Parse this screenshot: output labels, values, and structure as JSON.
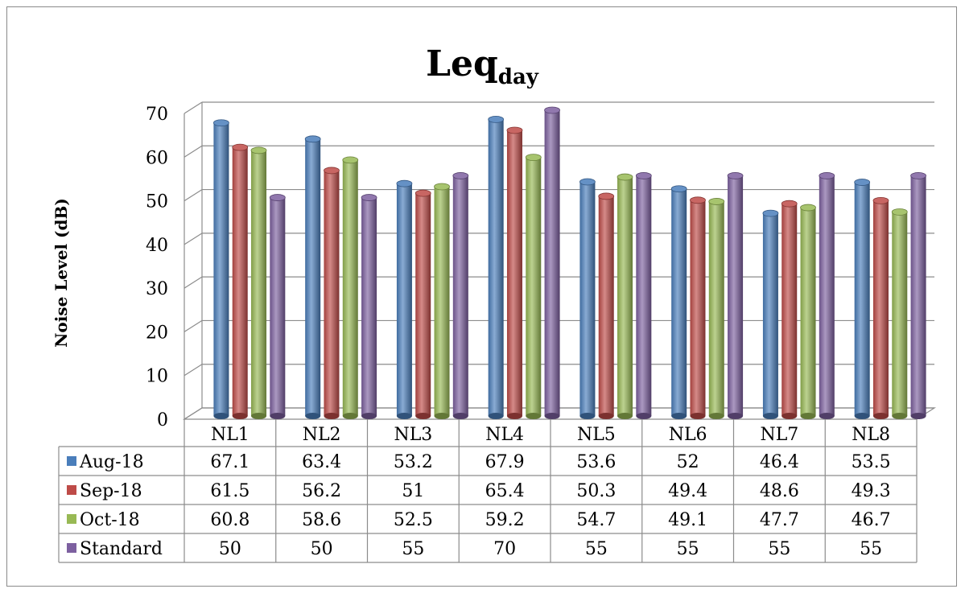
{
  "chart_data": {
    "type": "bar",
    "title": "Leq",
    "title_subscript": "day",
    "ylabel": "Noise Level (dB)",
    "xlabel": "",
    "ylim": [
      0,
      70
    ],
    "yticks": [
      0,
      10,
      20,
      30,
      40,
      50,
      60,
      70
    ],
    "grid": true,
    "legend": "table-left",
    "categories": [
      "NL1",
      "NL2",
      "NL3",
      "NL4",
      "NL5",
      "NL6",
      "NL7",
      "NL8"
    ],
    "series": [
      {
        "name": "Aug-18",
        "color": "#4a7ebb",
        "values": [
          67.1,
          63.4,
          53.2,
          67.9,
          53.6,
          52,
          46.4,
          53.5
        ]
      },
      {
        "name": "Sep-18",
        "color": "#be4b48",
        "values": [
          61.5,
          56.2,
          51,
          65.4,
          50.3,
          49.4,
          48.6,
          49.3
        ]
      },
      {
        "name": "Oct-18",
        "color": "#98b954",
        "values": [
          60.8,
          58.6,
          52.5,
          59.2,
          54.7,
          49.1,
          47.7,
          46.7
        ]
      },
      {
        "name": "Standard",
        "color": "#7d60a0",
        "values": [
          50,
          50,
          55,
          70,
          55,
          55,
          55,
          55
        ]
      }
    ]
  }
}
